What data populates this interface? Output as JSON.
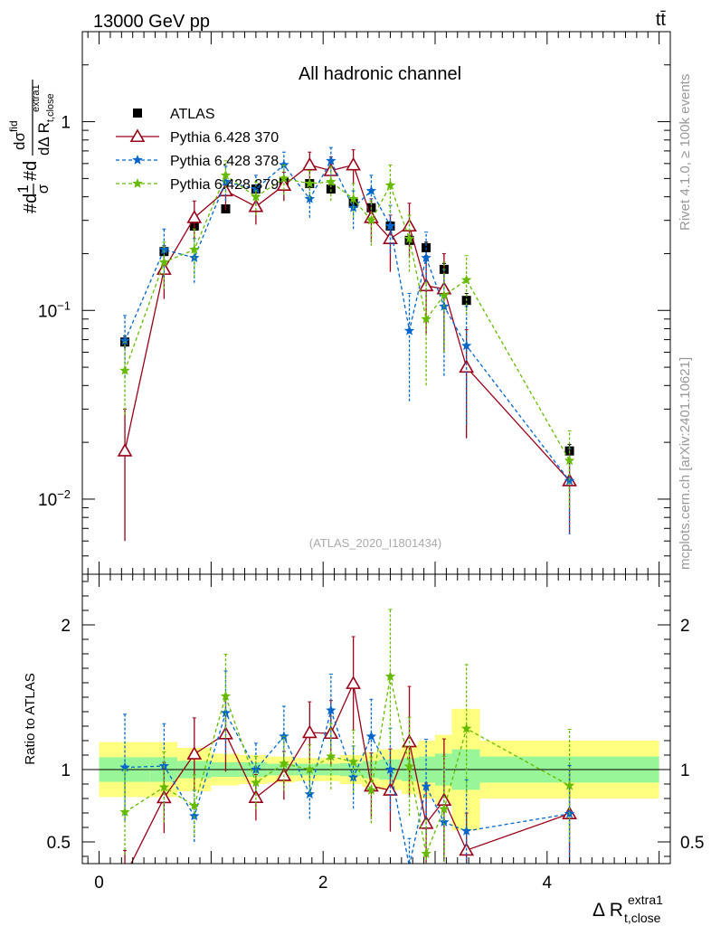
{
  "header": {
    "energy_label": "13000 GeV pp",
    "process_label": "tt̄"
  },
  "side": {
    "rivet_label": "Rivet 4.1.0, ≥ 100k events",
    "source_label": "mcplots.cern.ch [arXiv:2401.10621]"
  },
  "chart_data": {
    "type": "scatter",
    "title": "All hadronic channel",
    "analysis_label": "(ATLAS_2020_I1801434)",
    "xlabel_main": "Δ R",
    "xlabel_sup": "extra1",
    "xlabel_sub": "t,close",
    "ylabel_top": {
      "prefix": "#d",
      "frac1_num": "1",
      "frac1_den": "σ",
      "mid": "#d",
      "frac2_num_base": "dσ",
      "frac2_num_sup": "fid",
      "frac2_den_base": "dΔ R",
      "frac2_den_sub": "t,close",
      "frac2_den_sup": "extra1"
    },
    "ylabel_ratio": "Ratio to ATLAS",
    "xlim": [
      -0.15,
      5.1
    ],
    "ylim_main": [
      0.004,
      3.0
    ],
    "ylim_ratio": [
      0.35,
      2.35
    ],
    "x_ticks": [
      0,
      2,
      4
    ],
    "y_ticks_main": [
      {
        "value": 1,
        "mantissa": "1",
        "exponent": ""
      },
      {
        "value": 0.1,
        "mantissa": "10",
        "exponent": "−1"
      },
      {
        "value": 0.01,
        "mantissa": "10",
        "exponent": "−2"
      }
    ],
    "y_ticks_ratio": [
      0.5,
      1,
      2
    ],
    "bin_edges": [
      0,
      0.45,
      0.7,
      1.0,
      1.25,
      1.5,
      1.75,
      1.95,
      2.15,
      2.35,
      2.5,
      2.7,
      2.85,
      3.0,
      3.15,
      3.4,
      5.0
    ],
    "band_inner": [
      0.085,
      0.085,
      0.06,
      0.05,
      0.05,
      0.04,
      0.04,
      0.04,
      0.045,
      0.06,
      0.07,
      0.08,
      0.09,
      0.11,
      0.14,
      0.09
    ],
    "band_outer": [
      0.19,
      0.19,
      0.15,
      0.11,
      0.1,
      0.09,
      0.08,
      0.08,
      0.1,
      0.12,
      0.14,
      0.17,
      0.2,
      0.24,
      0.42,
      0.2
    ],
    "legend_position": "top-left",
    "series": [
      {
        "name": "ATLAS",
        "color": "#000000",
        "style": "data",
        "x": [
          0.23,
          0.58,
          0.85,
          1.13,
          1.4,
          1.65,
          1.88,
          2.07,
          2.27,
          2.43,
          2.6,
          2.77,
          2.92,
          3.08,
          3.28,
          4.2
        ],
        "y": [
          0.068,
          0.205,
          0.28,
          0.345,
          0.44,
          0.48,
          0.47,
          0.44,
          0.37,
          0.35,
          0.28,
          0.235,
          0.215,
          0.165,
          0.113,
          0.018
        ],
        "err": [
          0.005,
          0.015,
          0.015,
          0.015,
          0.02,
          0.02,
          0.02,
          0.02,
          0.017,
          0.018,
          0.015,
          0.015,
          0.015,
          0.012,
          0.01,
          0.0015
        ]
      },
      {
        "name": "Pythia 6.428 370",
        "color": "#99001a",
        "style": "solid-triangle",
        "x": [
          0.23,
          0.58,
          0.85,
          1.13,
          1.4,
          1.65,
          1.88,
          2.07,
          2.27,
          2.43,
          2.6,
          2.77,
          2.92,
          3.08,
          3.28,
          4.2
        ],
        "y": [
          0.018,
          0.165,
          0.31,
          0.43,
          0.355,
          0.46,
          0.59,
          0.55,
          0.59,
          0.31,
          0.24,
          0.28,
          0.135,
          0.13,
          0.05,
          0.0125
        ],
        "err": [
          0.012,
          0.05,
          0.07,
          0.09,
          0.07,
          0.08,
          0.1,
          0.1,
          0.12,
          0.08,
          0.08,
          0.09,
          0.06,
          0.07,
          0.029,
          0.006
        ]
      },
      {
        "name": "Pythia 6.428 378",
        "color": "#0066cc",
        "style": "dash-star",
        "x": [
          0.23,
          0.58,
          0.85,
          1.13,
          1.4,
          1.65,
          1.88,
          2.07,
          2.27,
          2.43,
          2.6,
          2.77,
          2.92,
          3.08,
          3.28,
          4.2
        ],
        "y": [
          0.069,
          0.21,
          0.19,
          0.48,
          0.44,
          0.59,
          0.39,
          0.62,
          0.35,
          0.43,
          0.28,
          0.078,
          0.19,
          0.105,
          0.065,
          0.0125
        ],
        "err": [
          0.025,
          0.06,
          0.05,
          0.1,
          0.08,
          0.1,
          0.08,
          0.11,
          0.08,
          0.09,
          0.08,
          0.045,
          0.07,
          0.06,
          0.04,
          0.006
        ]
      },
      {
        "name": "Pythia 6.428 379",
        "color": "#66bb00",
        "style": "dash-star",
        "x": [
          0.23,
          0.58,
          0.85,
          1.13,
          1.4,
          1.65,
          1.88,
          2.07,
          2.27,
          2.43,
          2.6,
          2.77,
          2.92,
          3.08,
          3.28,
          4.2
        ],
        "y": [
          0.048,
          0.18,
          0.21,
          0.52,
          0.4,
          0.5,
          0.47,
          0.48,
          0.39,
          0.3,
          0.46,
          0.24,
          0.09,
          0.12,
          0.145,
          0.016
        ],
        "err": [
          0.02,
          0.05,
          0.06,
          0.1,
          0.08,
          0.09,
          0.08,
          0.1,
          0.08,
          0.08,
          0.13,
          0.08,
          0.05,
          0.06,
          0.05,
          0.007
        ]
      }
    ]
  }
}
